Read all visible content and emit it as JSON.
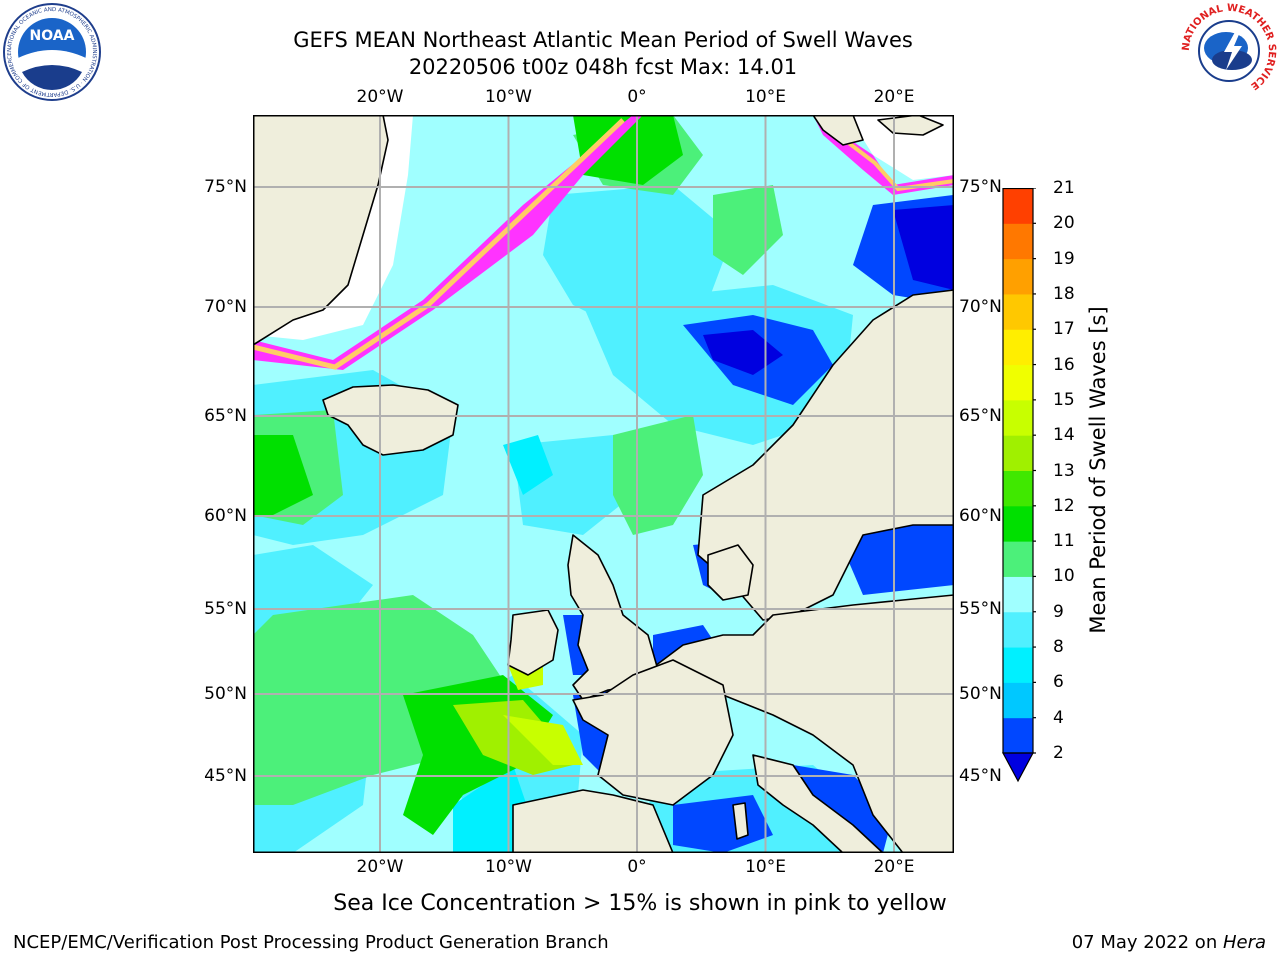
{
  "header": {
    "title_line1": "GEFS MEAN Northeast Atlantic Mean Period of Swell Waves",
    "title_line2": "20220506 t00z 048h fcst   Max: 14.01"
  },
  "map": {
    "lon_ticks": [
      {
        "lon": -20,
        "label": "20°W"
      },
      {
        "lon": -10,
        "label": "10°W"
      },
      {
        "lon": 0,
        "label": "0°"
      },
      {
        "lon": 10,
        "label": "10°E"
      },
      {
        "lon": 20,
        "label": "20°E"
      }
    ],
    "lat_ticks": [
      {
        "lat": 75,
        "label": "75°N"
      },
      {
        "lat": 70,
        "label": "70°N"
      },
      {
        "lat": 65,
        "label": "65°N"
      },
      {
        "lat": 60,
        "label": "60°N"
      },
      {
        "lat": 55,
        "label": "55°N"
      },
      {
        "lat": 50,
        "label": "50°N"
      },
      {
        "lat": 45,
        "label": "45°N"
      }
    ],
    "colors": {
      "land": "#efeedc",
      "ice_free_white": "#ffffff",
      "sea_ice": [
        "#ff33ff",
        "#ff99cc",
        "#ffcc66",
        "#ffff66"
      ]
    }
  },
  "colorbar": {
    "label": "Mean Period of Swell Waves [s]",
    "ticks": [
      "2",
      "4",
      "6",
      "8",
      "9",
      "10",
      "11",
      "12",
      "13",
      "14",
      "15",
      "16",
      "17",
      "18",
      "19",
      "20",
      "21"
    ],
    "colors": [
      "#0047ff",
      "#00c8ff",
      "#00f0ff",
      "#50f0ff",
      "#a0ffff",
      "#4cf07a",
      "#00e000",
      "#40e800",
      "#a0f000",
      "#c8ff00",
      "#f0ff00",
      "#ffee00",
      "#ffc800",
      "#ffa000",
      "#ff7800",
      "#ff4000",
      "#ff0000"
    ],
    "extend_color": "#0000e0"
  },
  "footer": {
    "note": "Sea Ice Concentration > 15% is shown in pink to yellow",
    "credit_left": "NCEP/EMC/Verification Post Processing Product Generation Branch",
    "credit_right_date": "07 May 2022 on ",
    "credit_right_host": "Hera"
  },
  "logos": {
    "noaa_text": "NOAA",
    "noaa_ring": "NATIONAL OCEANIC AND ATMOSPHERIC ADMINISTRATION · U.S. DEPARTMENT OF COMMERCE",
    "nws_ring": "NATIONAL WEATHER SERVICE"
  }
}
